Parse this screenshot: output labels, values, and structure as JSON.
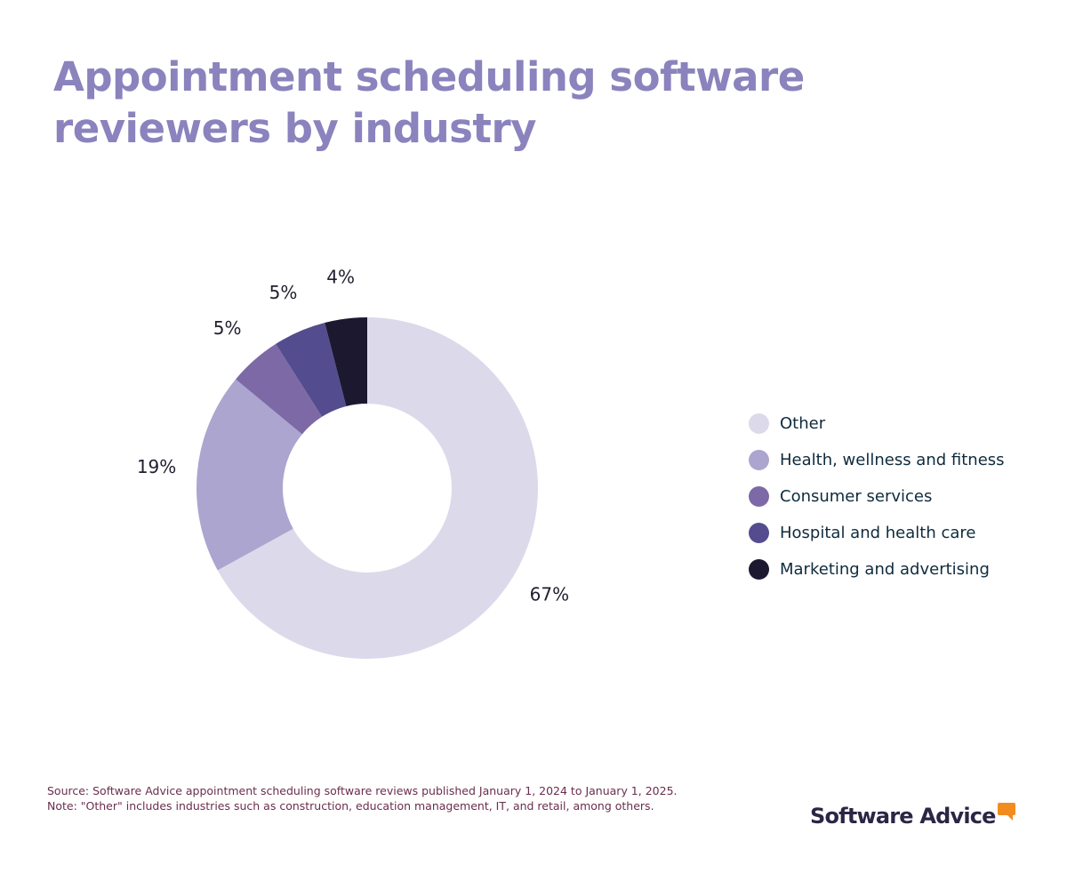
{
  "title": "Appointment scheduling software reviewers by industry",
  "chart_data": {
    "type": "pie",
    "variant": "donut",
    "title": "Appointment scheduling software reviewers by industry",
    "categories": [
      "Other",
      "Health, wellness and fitness",
      "Consumer services",
      "Hospital and health care",
      "Marketing and advertising"
    ],
    "values": [
      67,
      19,
      5,
      5,
      4
    ],
    "labels": [
      "67%",
      "19%",
      "5%",
      "5%",
      "4%"
    ],
    "colors": [
      "#dcd9ea",
      "#aca5cf",
      "#7d69a5",
      "#534d8f",
      "#1c1830"
    ],
    "legend_position": "right"
  },
  "footnote": {
    "source": "Source: Software Advice appointment scheduling software reviews published January 1, 2024 to January 1, 2025.",
    "note": "Note: \"Other\" includes industries such as construction, education management, IT, and retail, among others."
  },
  "brand": {
    "name": "Software Advice",
    "accent_color": "#f28c1e"
  }
}
